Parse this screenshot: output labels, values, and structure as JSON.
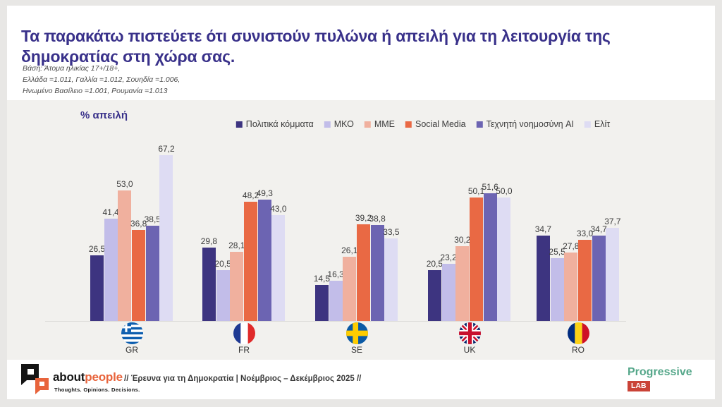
{
  "header": {
    "title_line1": "Τα παρακάτω πιστεύετε ότι συνιστούν πυλώνα ή απειλή για τη λειτουργία της",
    "title_line2": "δημοκρατίας στη χώρα σας.",
    "base_lines": [
      "Βάση: Άτομα ηλικίας 17+/18+,",
      "Ελλάδα =1.011, Γαλλία =1.012, Σουηδία =1.006,",
      "Ηνωμένο Βασίλειο =1.001, Ρουμανία =1.013"
    ]
  },
  "chart_data": {
    "type": "bar",
    "title": "% απειλή",
    "grid": false,
    "legend_position": "top-center",
    "ylim": [
      0,
      70
    ],
    "value_labels": "one decimal, comma as decimal separator",
    "categories": [
      "GR",
      "FR",
      "SE",
      "UK",
      "RO"
    ],
    "category_flags": [
      "greece-flag",
      "france-flag",
      "sweden-flag",
      "united-kingdom-flag",
      "romania-flag"
    ],
    "series": [
      {
        "name": "Πολιτικά κόμματα",
        "color": "#3d3480",
        "values": [
          26.5,
          29.8,
          14.5,
          20.5,
          34.7
        ]
      },
      {
        "name": "ΜΚΟ",
        "color": "#c2bde9",
        "values": [
          41.4,
          20.5,
          16.3,
          23.2,
          25.5
        ]
      },
      {
        "name": "ΜΜΕ",
        "color": "#f0b09e",
        "values": [
          53.0,
          28.1,
          26.1,
          30.2,
          27.8
        ]
      },
      {
        "name": "Social Media",
        "color": "#e96944",
        "values": [
          36.8,
          48.2,
          39.2,
          50.1,
          33.0
        ]
      },
      {
        "name": "Τεχνητή νοημοσύνη AI",
        "color": "#6c64b2",
        "values": [
          38.5,
          49.3,
          38.8,
          51.6,
          34.7
        ]
      },
      {
        "name": "Ελίτ",
        "color": "#dedcf3",
        "values": [
          67.2,
          43.0,
          33.5,
          50.0,
          37.7
        ]
      }
    ]
  },
  "footer": {
    "brand_black": "about",
    "brand_orange": "people",
    "tagline": "Thoughts. Opinions. Decisions.",
    "survey_note": "// Έρευνα για τη Δημοκρατία | Νοέμβριος – Δεκέμβριος 2025 //",
    "progressive": "Progressive",
    "lab": "LAB"
  },
  "colors": {
    "title_indigo": "#39318a",
    "slide_gray": "#f2f1ee",
    "brand_orange": "#e8643c",
    "progressive_green": "#55a78a",
    "lab_red": "#ca4337"
  }
}
